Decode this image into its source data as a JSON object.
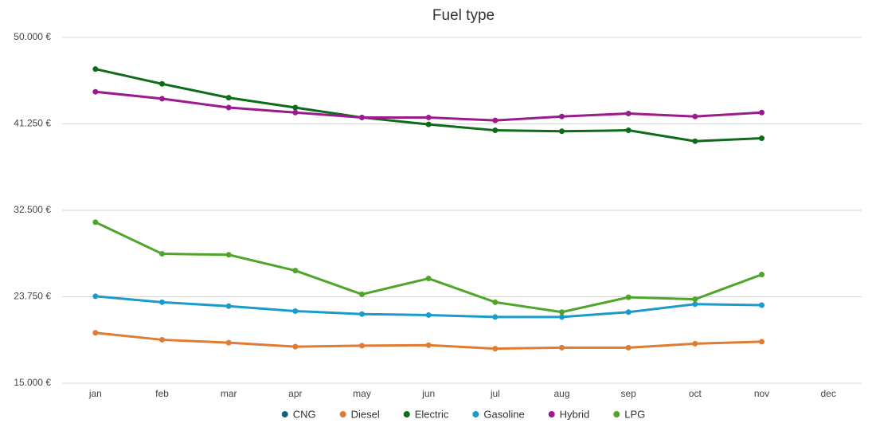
{
  "chart_data": {
    "type": "line",
    "title": "Fuel type",
    "categories": [
      "jan",
      "feb",
      "mar",
      "apr",
      "may",
      "jun",
      "jul",
      "aug",
      "sep",
      "oct",
      "nov",
      "dec"
    ],
    "ylim": [
      15000,
      50000
    ],
    "yticks": [
      {
        "value": 15000,
        "label": "15.000 €"
      },
      {
        "value": 23750,
        "label": "23.750 €"
      },
      {
        "value": 32500,
        "label": "32.500 €"
      },
      {
        "value": 41250,
        "label": "41.250 €"
      },
      {
        "value": 50000,
        "label": "50.000 €"
      }
    ],
    "grid": true,
    "legend": "bottom",
    "series": [
      {
        "name": "CNG",
        "color": "#1f5f7a",
        "values": [
          null,
          null,
          null,
          null,
          null,
          null,
          null,
          null,
          null,
          null,
          null,
          null
        ]
      },
      {
        "name": "Diesel",
        "color": "#e07b32",
        "values": [
          20100,
          19400,
          19100,
          18700,
          18800,
          18850,
          18500,
          18600,
          18600,
          19000,
          19200,
          null
        ]
      },
      {
        "name": "Electric",
        "color": "#0d6b1a",
        "values": [
          46800,
          45300,
          43900,
          42900,
          41900,
          41200,
          40600,
          40500,
          40600,
          39500,
          39800,
          null
        ]
      },
      {
        "name": "Gasoline",
        "color": "#1a9bc9",
        "values": [
          23800,
          23200,
          22800,
          22300,
          22000,
          21900,
          21700,
          21700,
          22200,
          23000,
          22900,
          null
        ]
      },
      {
        "name": "Hybrid",
        "color": "#9b1b8e",
        "values": [
          44500,
          43800,
          42900,
          42400,
          41900,
          41900,
          41600,
          42000,
          42300,
          42000,
          42400,
          null
        ]
      },
      {
        "name": "LPG",
        "color": "#4fa52a",
        "values": [
          31300,
          28100,
          28000,
          26400,
          24000,
          25600,
          23200,
          22200,
          23700,
          23500,
          26000,
          null
        ]
      }
    ]
  }
}
